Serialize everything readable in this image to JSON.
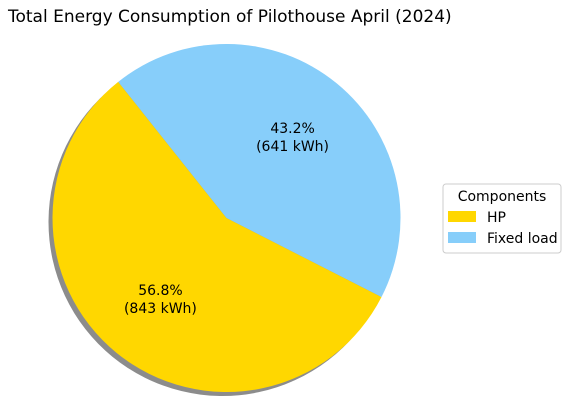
{
  "chart_data": {
    "type": "pie",
    "title": "Total Energy Consumption of Pilothouse April (2024)",
    "legend_title": "Components",
    "legend_position": "right",
    "shadow": true,
    "slices": [
      {
        "name": "HP",
        "percent": 56.8,
        "value": 843,
        "unit": "kWh",
        "pct_text": "56.8%",
        "value_text": "(843 kWh)",
        "color": "#FFD700"
      },
      {
        "name": "Fixed load",
        "percent": 43.2,
        "value": 641,
        "unit": "kWh",
        "pct_text": "43.2%",
        "value_text": "(641 kWh)",
        "color": "#87CEFA"
      }
    ]
  }
}
